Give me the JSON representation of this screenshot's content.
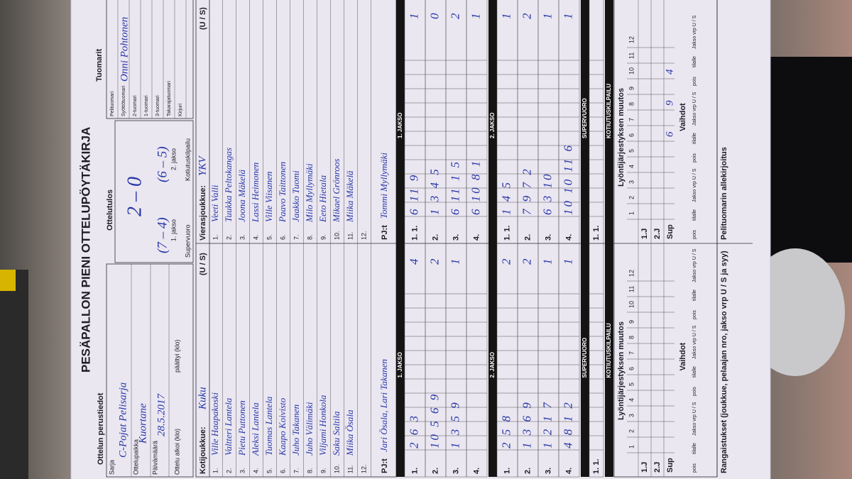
{
  "header": {
    "title": "PESÄPALLON PIENI OTTELUPÖYTÄKIRJA"
  },
  "match_info": {
    "heading": "Ottelun perustiedot",
    "series_label": "Sarja",
    "series": "C-Pojat Pelisarja",
    "venue_label": "Ottelupaikka",
    "venue": "Kuortane",
    "date_label": "Päivämäärä",
    "date": "28.5.2017",
    "start_label": "Ottelu alkoi (klo)",
    "end_label": "päättyi (klo)"
  },
  "result": {
    "heading": "Ottelutulos",
    "score": "2 – 0",
    "period1": "(7 – 4)",
    "period1_label": "1. jakso",
    "period2": "(6 – 5)",
    "period2_label": "2. jakso",
    "super_label": "Supervuoro",
    "home_run_label": "Kotiutuskilpailu"
  },
  "referees": {
    "heading": "Tuomarit",
    "roles": [
      "Pelituomari",
      "Syöttötuomari",
      "2-tuomari",
      "1-tuomari",
      "3-tuomari",
      "Takarajatuomari",
      "Kirjuri"
    ],
    "pitch_referee": "Onni Pohtonen"
  },
  "teams": [
    {
      "label": "Kotijoukkue:",
      "name": "Kuku",
      "side": "(U / S)",
      "players": [
        {
          "no": "1.",
          "name": "Ville Haapakoski"
        },
        {
          "no": "2.",
          "name": "Valtteri Lantela"
        },
        {
          "no": "3.",
          "name": "Pietu Puttonen"
        },
        {
          "no": "4.",
          "name": "Aleksi Lantela"
        },
        {
          "no": "5.",
          "name": "Tuomas Lantela"
        },
        {
          "no": "6.",
          "name": "Kaapo Koivisto"
        },
        {
          "no": "7.",
          "name": "Juho Takanen"
        },
        {
          "no": "8.",
          "name": "Juho Välimäki"
        },
        {
          "no": "9.",
          "name": "Viljami Honkola"
        },
        {
          "no": "10.",
          "name": "Saku Saltila"
        },
        {
          "no": "11.",
          "name": "Miika Ösala"
        },
        {
          "no": "12."
        }
      ],
      "coach_label": "PJ:t",
      "coach": "Jari Ösala, Lari Takanen",
      "innings": [
        {
          "label": "1. JAKSO",
          "rows": [
            {
              "no": "1.",
              "batting": "2 6 3",
              "runs": "4"
            },
            {
              "no": "2.",
              "batting": "10 5 6 9",
              "runs": "2"
            },
            {
              "no": "3.",
              "batting": "1 3 5 9",
              "runs": "1"
            },
            {
              "no": "4."
            }
          ]
        },
        {
          "label": "2. JAKSO",
          "rows": [
            {
              "no": "1.",
              "batting": "2 5 8",
              "runs": "2"
            },
            {
              "no": "2.",
              "batting": "1 3 6 9",
              "runs": "2"
            },
            {
              "no": "3.",
              "batting": "1 2 1 7",
              "runs": "1"
            },
            {
              "no": "4.",
              "batting": "4 8 1 2",
              "runs": "1"
            }
          ]
        },
        {
          "label": "SUPERVUORO",
          "rows": [
            {
              "no": "1. 1."
            }
          ]
        },
        {
          "label": "KOTIUTUSKILPAILU"
        }
      ],
      "footer": "Rangaistukset (joukkue, pelaajan nro, jakso vrp U / S ja syy)"
    },
    {
      "label": "Vierasjoukkue:",
      "name": "YKV",
      "side": "(U / S)",
      "players": [
        {
          "no": "1.",
          "name": "Veeti Valli"
        },
        {
          "no": "2.",
          "name": "Tuukka Peltokangas"
        },
        {
          "no": "3.",
          "name": "Joona Mäkelä"
        },
        {
          "no": "4.",
          "name": "Lassi Heimonen"
        },
        {
          "no": "5.",
          "name": "Ville Viisanen"
        },
        {
          "no": "6.",
          "name": "Paavo Taittonen"
        },
        {
          "no": "7.",
          "name": "Jaakko Tuomi"
        },
        {
          "no": "8.",
          "name": "Milo Myllymäki"
        },
        {
          "no": "9.",
          "name": "Eeto Hietala"
        },
        {
          "no": "10.",
          "name": "Mikael Grönroos"
        },
        {
          "no": "11.",
          "name": "Miika Mäkelä"
        },
        {
          "no": "12."
        }
      ],
      "coach_label": "PJ:t",
      "coach": "Tommi Myllymäki",
      "innings": [
        {
          "label": "1. JAKSO",
          "rows": [
            {
              "no": "1. 1.",
              "batting": "6 11 9",
              "runs": "1"
            },
            {
              "no": "2.",
              "batting": "1 3 4 5",
              "runs": "0"
            },
            {
              "no": "3.",
              "batting": "6 11 1 5",
              "runs": "2"
            },
            {
              "no": "4.",
              "batting": "6 10 8 1",
              "runs": "1"
            }
          ]
        },
        {
          "label": "2. JAKSO",
          "rows": [
            {
              "no": "1. 1.",
              "batting": "1 4 5",
              "runs": "1"
            },
            {
              "no": "2.",
              "batting": "7 9 7 2",
              "runs": "2"
            },
            {
              "no": "3.",
              "batting": "6 3 10",
              "runs": "1"
            },
            {
              "no": "4.",
              "batting": "10 10 11 6",
              "runs": "1"
            }
          ]
        },
        {
          "label": "SUPERVUORO",
          "rows": [
            {
              "no": "1. 1."
            }
          ]
        },
        {
          "label": "KOTIUTUSKILPAILU"
        }
      ],
      "sup_entries": [
        "6",
        "9",
        "4"
      ],
      "footer": "Pelituomarin allekirjoitus"
    }
  ],
  "lineup": {
    "heading": "Lyöntijärjestyksen muutos",
    "numbers": [
      1,
      2,
      3,
      4,
      5,
      6,
      7,
      8,
      9,
      10,
      11,
      12
    ],
    "rows": [
      "1.J",
      "2.J",
      "Sup"
    ],
    "subs_heading": "Vaihdot",
    "subs_columns": [
      "pois",
      "tilalle",
      "Jakso vrp U / S"
    ]
  }
}
